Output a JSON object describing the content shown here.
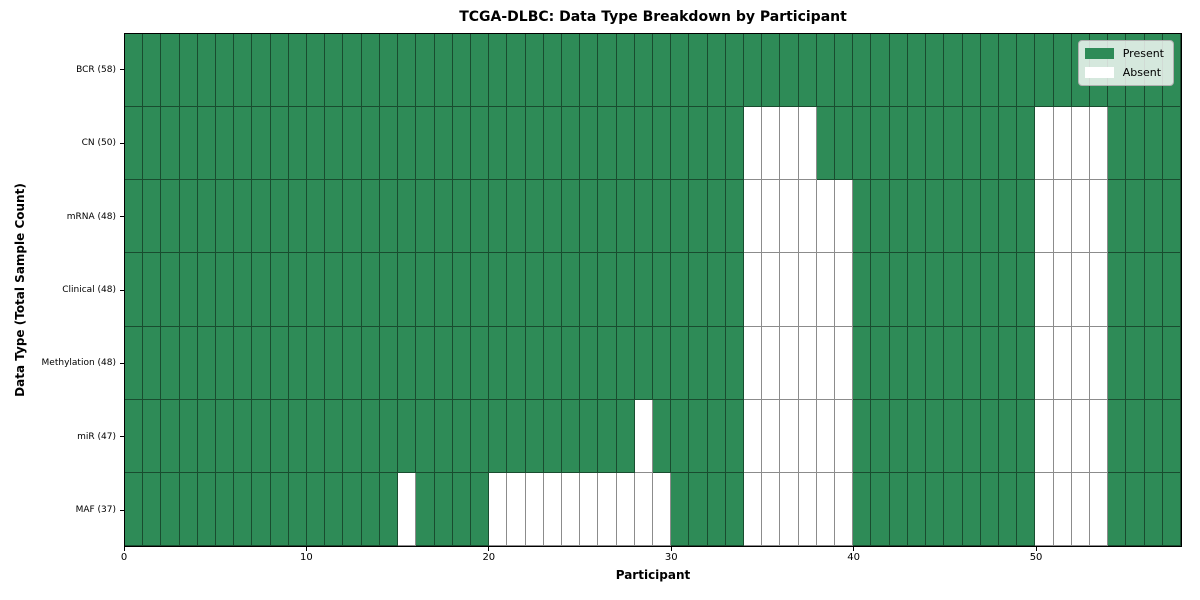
{
  "title": "TCGA-DLBC: Data Type Breakdown by Participant",
  "chart_data": {
    "type": "heatmap",
    "title": "TCGA-DLBC: Data Type Breakdown by Participant",
    "xlabel": "Participant",
    "ylabel": "Data Type (Total Sample Count)",
    "n_participants": 58,
    "x_ticks": [
      0,
      10,
      20,
      30,
      40,
      50
    ],
    "x_range": [
      0,
      58
    ],
    "grid": true,
    "legend_position": "upper right",
    "legend": [
      {
        "name": "Present",
        "color": "#2e8b57"
      },
      {
        "name": "Absent",
        "color": "#ffffff"
      }
    ],
    "rows": [
      {
        "label": "BCR (58)",
        "data_type": "BCR",
        "total_samples": 58,
        "absent_participants": []
      },
      {
        "label": "CN (50)",
        "data_type": "CN",
        "total_samples": 50,
        "absent_participants": [
          34,
          35,
          36,
          37,
          50,
          51,
          52,
          53
        ]
      },
      {
        "label": "mRNA (48)",
        "data_type": "mRNA",
        "total_samples": 48,
        "absent_participants": [
          34,
          35,
          36,
          37,
          38,
          39,
          50,
          51,
          52,
          53
        ]
      },
      {
        "label": "Clinical (48)",
        "data_type": "Clinical",
        "total_samples": 48,
        "absent_participants": [
          34,
          35,
          36,
          37,
          38,
          39,
          50,
          51,
          52,
          53
        ]
      },
      {
        "label": "Methylation (48)",
        "data_type": "Methylation",
        "total_samples": 48,
        "absent_participants": [
          34,
          35,
          36,
          37,
          38,
          39,
          50,
          51,
          52,
          53
        ]
      },
      {
        "label": "miR (47)",
        "data_type": "miR",
        "total_samples": 47,
        "absent_participants": [
          28,
          34,
          35,
          36,
          37,
          38,
          39,
          50,
          51,
          52,
          53
        ]
      },
      {
        "label": "MAF (37)",
        "data_type": "MAF",
        "total_samples": 37,
        "absent_participants": [
          15,
          20,
          21,
          22,
          23,
          24,
          25,
          26,
          27,
          28,
          29,
          34,
          35,
          36,
          37,
          38,
          39,
          50,
          51,
          52,
          53
        ]
      }
    ],
    "colors": {
      "present": "#2e8b57",
      "absent": "#ffffff",
      "cell_border": "rgba(0,0,0,0.45)",
      "axis": "#000000",
      "legend_border": "#b0b0b0"
    }
  }
}
